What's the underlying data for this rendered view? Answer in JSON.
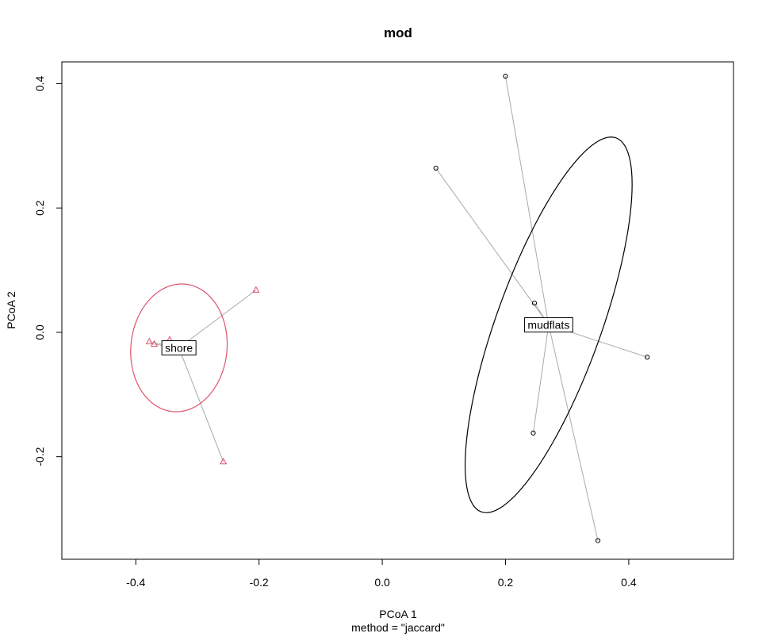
{
  "chart_data": {
    "type": "scatter",
    "title": "mod",
    "xlabel": "PCoA 1",
    "sublabel": "method = \"jaccard\"",
    "ylabel": "PCoA 2",
    "xlim": [
      -0.52,
      0.57
    ],
    "ylim": [
      -0.365,
      0.435
    ],
    "x_ticks": [
      -0.4,
      -0.2,
      0.0,
      0.2,
      0.4
    ],
    "x_tick_labels": [
      "-0.4",
      "-0.2",
      "0.0",
      "0.2",
      "0.4"
    ],
    "y_ticks": [
      -0.2,
      0.0,
      0.2,
      0.4
    ],
    "y_tick_labels": [
      "-0.2",
      "0.0",
      "0.2",
      "0.4"
    ],
    "grid": false,
    "groups": [
      {
        "name": "shore",
        "color": "#DF536B",
        "marker": "triangle",
        "centroid": [
          -0.33,
          -0.025
        ],
        "points": [
          [
            -0.205,
            0.068
          ],
          [
            -0.258,
            -0.208
          ],
          [
            -0.345,
            -0.012
          ],
          [
            -0.37,
            -0.019
          ],
          [
            -0.378,
            -0.015
          ]
        ],
        "ellipse": {
          "center": [
            -0.33,
            -0.025
          ],
          "a": 0.078,
          "b": 0.103,
          "angle_deg": -6
        }
      },
      {
        "name": "mudflats",
        "color": "#000000",
        "marker": "circle",
        "centroid": [
          0.27,
          0.012
        ],
        "points": [
          [
            0.2,
            0.412
          ],
          [
            0.087,
            0.264
          ],
          [
            0.247,
            0.047
          ],
          [
            0.43,
            -0.04
          ],
          [
            0.245,
            -0.162
          ],
          [
            0.35,
            -0.335
          ]
        ],
        "ellipse": {
          "center": [
            0.27,
            0.012
          ],
          "a": 0.32,
          "b": 0.085,
          "angle_deg": 70
        }
      }
    ],
    "spider_color": "#AAAAAA"
  }
}
